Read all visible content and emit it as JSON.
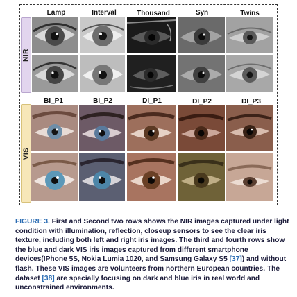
{
  "figure": {
    "row_labels": {
      "nir": "NIR",
      "vis": "VIS"
    },
    "nir_headers": [
      "Lamp",
      "Interval",
      "Thousand",
      "Syn",
      "Twins"
    ],
    "vis_headers": [
      "BI_P1",
      "BI_P2",
      "DI_P1",
      "DI_P2",
      "DI_P3"
    ]
  },
  "caption": {
    "figure_id": "FIGURE 3.",
    "text_1": " First and Second two rows shows the NIR images captured under light condition with illumination, reflection, closeup sensors to see the clear iris texture, including both left and right iris images. The third and fourth rows show the blue and dark VIS iris images captured from different smartphone devices(IPhone 5S, Nokia Lumia 1020, and Samsung Galaxy S5 ",
    "ref_1": "[37]",
    "text_2": ") and without flash. These VIS images are volunteers from northern European countries. The dataset ",
    "ref_2": "[38]",
    "text_3": " are specially focusing on dark and blue iris in real world and unconstrained environments."
  },
  "colors": {
    "nir_label_bg": "#e2d5ee",
    "vis_label_bg": "#f7e7b8",
    "caption_text": "#1b1b3a",
    "link_blue": "#2b6cb3"
  }
}
